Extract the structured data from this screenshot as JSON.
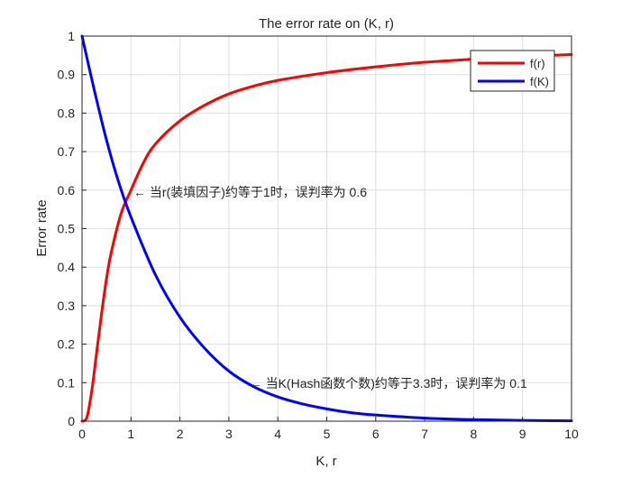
{
  "chart_data": {
    "type": "line",
    "title": "The error rate on (K, r)",
    "xlabel": "K, r",
    "ylabel": "Error rate",
    "xlim": [
      0,
      10
    ],
    "ylim": [
      0,
      1
    ],
    "xticks": [
      "0",
      "1",
      "2",
      "3",
      "4",
      "5",
      "6",
      "7",
      "8",
      "9",
      "10"
    ],
    "yticks": [
      "0",
      "0.1",
      "0.2",
      "0.3",
      "0.4",
      "0.5",
      "0.6",
      "0.7",
      "0.8",
      "0.9",
      "1"
    ],
    "grid": true,
    "legend_position": "top-right",
    "series": [
      {
        "name": "f(r)",
        "color": "#ff0000",
        "x": [
          0,
          0.1,
          0.2,
          0.3,
          0.4,
          0.5,
          0.6,
          0.8,
          1,
          1.25,
          1.5,
          2,
          2.5,
          3,
          3.5,
          4,
          5,
          6,
          7,
          8,
          9,
          10
        ],
        "y": [
          0,
          0.01,
          0.08,
          0.18,
          0.28,
          0.37,
          0.44,
          0.54,
          0.6,
          0.67,
          0.72,
          0.78,
          0.82,
          0.85,
          0.87,
          0.885,
          0.905,
          0.92,
          0.932,
          0.94,
          0.947,
          0.952
        ]
      },
      {
        "name": "f(K)",
        "color": "#0000ff",
        "x": [
          0,
          0.25,
          0.5,
          0.75,
          1,
          1.5,
          2,
          2.5,
          3,
          3.5,
          4,
          4.5,
          5,
          5.5,
          6,
          7,
          8,
          9,
          10
        ],
        "y": [
          1,
          0.86,
          0.73,
          0.62,
          0.53,
          0.38,
          0.27,
          0.19,
          0.13,
          0.09,
          0.063,
          0.045,
          0.032,
          0.022,
          0.016,
          0.008,
          0.004,
          0.002,
          0.001
        ]
      }
    ],
    "annotations": [
      {
        "text": "← 当r(装填因子)约等于1时，误判率为 0.6",
        "x": 1.05,
        "y": 0.595
      },
      {
        "text": "← 当K(Hash函数个数)约等于3.3时，误判率为 0.1",
        "x": 3.42,
        "y": 0.098
      }
    ]
  }
}
